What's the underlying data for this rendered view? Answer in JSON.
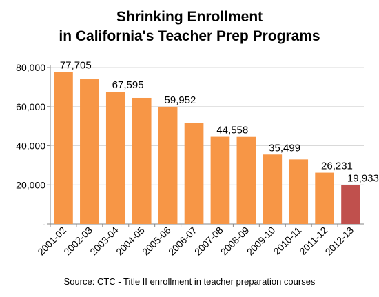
{
  "chart_data": {
    "type": "bar",
    "title": "Shrinking Enrollment\nin California's Teacher Prep Programs",
    "title_lines": [
      "Shrinking Enrollment",
      "in California's Teacher Prep Programs"
    ],
    "xlabel": "",
    "ylabel": "",
    "ylim": [
      0,
      80000
    ],
    "yticks": [
      0,
      20000,
      40000,
      60000,
      80000
    ],
    "ytick_labels": [
      "-",
      "20,000",
      "40,000",
      "60,000",
      "80,000"
    ],
    "categories": [
      "2001-02",
      "2002-03",
      "2003-04",
      "2004-05",
      "2005-06",
      "2006-07",
      "2007-08",
      "2008-09",
      "2009-10",
      "2010-11",
      "2011-12",
      "2012-13"
    ],
    "values": [
      77705,
      74000,
      67595,
      64500,
      59952,
      51500,
      44558,
      44500,
      35499,
      33000,
      26231,
      19933
    ],
    "data_labels": [
      "77,705",
      "",
      "67,595",
      "",
      "59,952",
      "",
      "44,558",
      "",
      "35,499",
      "",
      "26,231",
      "19,933"
    ],
    "bar_colors": [
      "#F79646",
      "#F79646",
      "#F79646",
      "#F79646",
      "#F79646",
      "#F79646",
      "#F79646",
      "#F79646",
      "#F79646",
      "#F79646",
      "#F79646",
      "#C0504D"
    ],
    "grid": true,
    "source": "Source: CTC - Title II enrollment in teacher preparation courses"
  }
}
